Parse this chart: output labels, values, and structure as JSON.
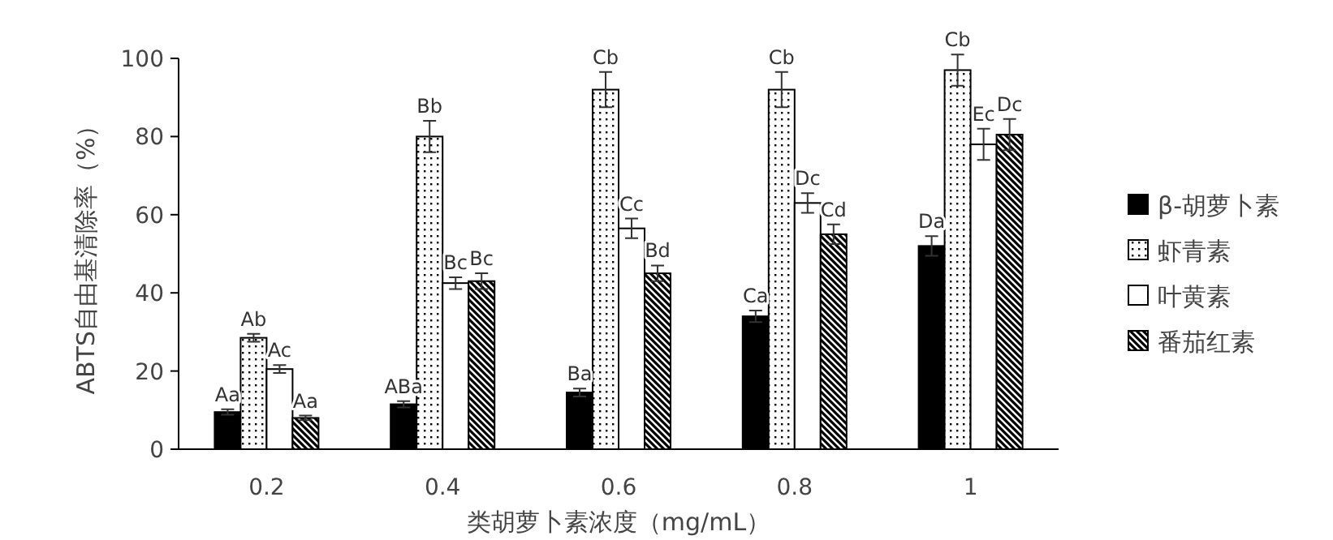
{
  "chart_data": {
    "type": "bar",
    "xlabel": "类胡萝卜素浓度（mg/mL）",
    "ylabel": "ABTS自由基清除率（%）",
    "categories": [
      "0.2",
      "0.4",
      "0.6",
      "0.8",
      "1"
    ],
    "ylim": [
      0,
      100
    ],
    "yticks": [
      0,
      20,
      40,
      60,
      80,
      100
    ],
    "grid": false,
    "legend": "right",
    "series": [
      {
        "name": "β-胡萝卜素",
        "color": "#000000",
        "values": [
          9.5,
          11.5,
          14.5,
          34,
          52
        ],
        "errors": [
          0.7,
          0.8,
          1,
          1.5,
          2.5
        ],
        "value_labels": [
          "Aa",
          "ABa",
          "Ba",
          "Ca",
          "Da"
        ]
      },
      {
        "name": "虾青素",
        "color": "#000000",
        "values": [
          28.5,
          80,
          92,
          92,
          97
        ],
        "errors": [
          1,
          4,
          4.5,
          4.5,
          4
        ],
        "value_labels": [
          "Ab",
          "Bb",
          "Cb",
          "Cb",
          "Cb"
        ]
      },
      {
        "name": "叶黄素",
        "color": "#ffffff",
        "values": [
          20.5,
          42.5,
          56.5,
          63,
          78
        ],
        "errors": [
          1,
          1.5,
          2.5,
          2.5,
          4
        ],
        "value_labels": [
          "Ac",
          "Bc",
          "Cc",
          "Dc",
          "Ec"
        ]
      },
      {
        "name": "番茄红素",
        "color": "#000000",
        "values": [
          8,
          43,
          45,
          55,
          80.5
        ],
        "errors": [
          0.6,
          2,
          2,
          2.5,
          4
        ],
        "value_labels": [
          "Aa",
          "Bc",
          "Bd",
          "Cd",
          "Dc"
        ]
      }
    ]
  }
}
